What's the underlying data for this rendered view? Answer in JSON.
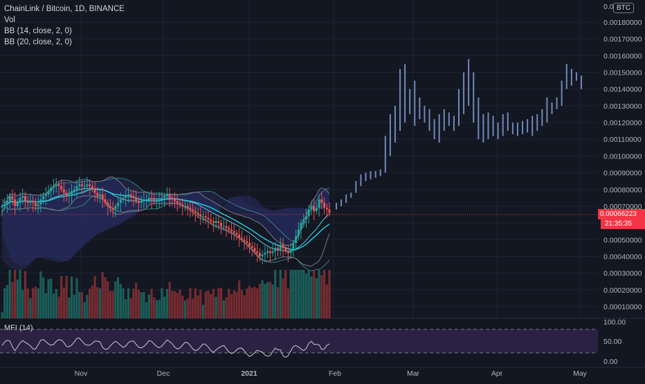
{
  "header": {
    "title": "ChainLink / Bitcoin, 1D, BINANCE",
    "vol_label": "Vol",
    "bb1_label": "BB (14, close, 2, 0)",
    "bb2_label": "BB (20, close, 2, 0)",
    "currency_badge": "BTC",
    "mfi_label": "MFI (14)"
  },
  "price_scale": {
    "top_label": "0.00",
    "ticks": [
      "0.00180000",
      "0.00170000",
      "0.00160000",
      "0.00150000",
      "0.00140000",
      "0.00130000",
      "0.00120000",
      "0.00110000",
      "0.00100000",
      "0.00090000",
      "0.00080000",
      "0.00070000",
      "0.00050000",
      "0.00040000",
      "0.00030000",
      "0.00020000",
      "0.00010000"
    ],
    "partial_tick": "0.",
    "last_price": "0.00066223",
    "countdown": "21:35:35"
  },
  "mfi_scale": {
    "ticks": [
      "100.00",
      "50.00",
      "0.00"
    ]
  },
  "time_axis": {
    "labels": [
      "Nov",
      "Dec",
      "2021",
      "Feb",
      "Mar",
      "Apr",
      "May"
    ]
  },
  "colors": {
    "background": "#131722",
    "up": "#26a69a",
    "down": "#ef5350",
    "projection": "#7189b8",
    "bb_fill": "#2a2e5c",
    "bb_line": "#787b86",
    "basis_line": "#26c6da",
    "mfi_band": "#2f2347",
    "mfi_line": "#c8cbd3",
    "last_price": "#f23645"
  },
  "chart_data": {
    "type": "candlestick",
    "symbol": "ChainLink / Bitcoin",
    "interval": "1D",
    "exchange": "BINANCE",
    "close_series": [
      0.0007,
      0.00071,
      0.00073,
      0.00076,
      0.00074,
      0.0007,
      0.00072,
      0.00075,
      0.00076,
      0.00073,
      0.00072,
      0.00073,
      0.00072,
      0.0007,
      0.00071,
      0.00074,
      0.00076,
      0.00077,
      0.00079,
      0.00081,
      0.00082,
      0.00083,
      0.00082,
      0.0008,
      0.00078,
      0.00076,
      0.00077,
      0.00079,
      0.0008,
      0.00082,
      0.00083,
      0.00082,
      0.00082,
      0.00083,
      0.00082,
      0.0008,
      0.00078,
      0.00076,
      0.00077,
      0.00074,
      0.00072,
      0.0007,
      0.00069,
      0.00068,
      0.0007,
      0.00072,
      0.00074,
      0.00075,
      0.00076,
      0.00077,
      0.00076,
      0.00075,
      0.00073,
      0.00072,
      0.00073,
      0.00074,
      0.00074,
      0.00075,
      0.00074,
      0.00073,
      0.00073,
      0.00074,
      0.00075,
      0.00076,
      0.00077,
      0.00075,
      0.00074,
      0.00073,
      0.00072,
      0.00071,
      0.0007,
      0.0007,
      0.00069,
      0.00068,
      0.00067,
      0.00066,
      0.00065,
      0.00064,
      0.00064,
      0.00063,
      0.00062,
      0.00061,
      0.0006,
      0.00061,
      0.0006,
      0.00058,
      0.00058,
      0.00057,
      0.00056,
      0.00055,
      0.00054,
      0.00053,
      0.00051,
      0.0005,
      0.00049,
      0.00048,
      0.00046,
      0.00045,
      0.00043,
      0.00042,
      0.0004,
      0.00041,
      0.00042,
      0.00043,
      0.00042,
      0.00043,
      0.00045,
      0.00044,
      0.00047,
      0.00045,
      0.00043,
      0.00042,
      0.00044,
      0.00048,
      0.00052,
      0.00056,
      0.0006,
      0.00062,
      0.00064,
      0.00068,
      0.0007,
      0.00067,
      0.00069,
      0.00074,
      0.00072,
      0.00069,
      0.00068,
      0.00066
    ],
    "projection_ticks": [
      [
        0.00068,
        0.00072
      ],
      [
        0.0007,
        0.00074
      ],
      [
        0.00072,
        0.00077
      ],
      [
        0.00075,
        0.00078
      ],
      [
        0.00078,
        0.00085
      ],
      [
        0.00082,
        0.00089
      ],
      [
        0.00085,
        0.0009
      ],
      [
        0.00086,
        0.00091
      ],
      [
        0.00087,
        0.00091
      ],
      [
        0.00088,
        0.00092
      ],
      [
        0.0009,
        0.00112
      ],
      [
        0.001,
        0.00125
      ],
      [
        0.00108,
        0.0013
      ],
      [
        0.00115,
        0.00152
      ],
      [
        0.0012,
        0.00155
      ],
      [
        0.00125,
        0.0014
      ],
      [
        0.00118,
        0.00145
      ],
      [
        0.00122,
        0.00135
      ],
      [
        0.0012,
        0.0013
      ],
      [
        0.00115,
        0.00128
      ],
      [
        0.0011,
        0.00122
      ],
      [
        0.00108,
        0.00125
      ],
      [
        0.00115,
        0.00128
      ],
      [
        0.00118,
        0.00126
      ],
      [
        0.00115,
        0.00124
      ],
      [
        0.00118,
        0.0014
      ],
      [
        0.00125,
        0.0015
      ],
      [
        0.0013,
        0.00158
      ],
      [
        0.0012,
        0.0015
      ],
      [
        0.0011,
        0.00135
      ],
      [
        0.00108,
        0.00125
      ],
      [
        0.0011,
        0.00126
      ],
      [
        0.00112,
        0.00124
      ],
      [
        0.0011,
        0.0012
      ],
      [
        0.00112,
        0.00125
      ],
      [
        0.00115,
        0.00126
      ],
      [
        0.00113,
        0.0012
      ],
      [
        0.00112,
        0.0012
      ],
      [
        0.00113,
        0.00121
      ],
      [
        0.00114,
        0.00122
      ],
      [
        0.00112,
        0.00124
      ],
      [
        0.00115,
        0.00125
      ],
      [
        0.00118,
        0.00128
      ],
      [
        0.0012,
        0.00135
      ],
      [
        0.00125,
        0.00132
      ],
      [
        0.00128,
        0.00135
      ],
      [
        0.0013,
        0.00145
      ],
      [
        0.0014,
        0.00155
      ],
      [
        0.00142,
        0.00152
      ],
      [
        0.00145,
        0.0015
      ],
      [
        0.0014,
        0.00148
      ]
    ],
    "volume_max": 0.00032,
    "mfi_range": [
      0,
      100
    ],
    "mfi_bands": [
      80,
      20
    ]
  }
}
